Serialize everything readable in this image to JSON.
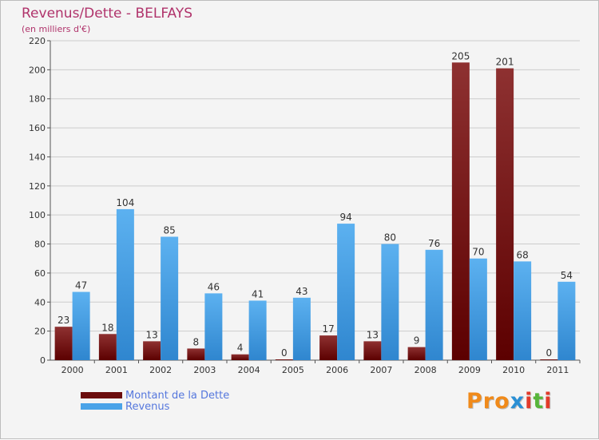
{
  "header": {
    "title": "Revenus/Dette - BELFAYS",
    "subtitle": "(en milliers d'€)"
  },
  "legend": {
    "items": [
      {
        "label": "Montant de la Dette",
        "color": "#6b0c0c"
      },
      {
        "label": "Revenus",
        "color": "#4aa3e8"
      }
    ]
  },
  "logo": {
    "text": "Proxiti",
    "colors": [
      "#f08a1a",
      "#f08a1a",
      "#f08a1a",
      "#2a8fd4",
      "#e23a2a",
      "#57b53a",
      "#e23a2a"
    ]
  },
  "chart_data": {
    "type": "bar",
    "categories": [
      "2000",
      "2001",
      "2002",
      "2003",
      "2004",
      "2005",
      "2006",
      "2007",
      "2008",
      "2009",
      "2010",
      "2011"
    ],
    "series": [
      {
        "name": "Montant de la Dette",
        "values": [
          23,
          18,
          13,
          8,
          4,
          0,
          17,
          13,
          9,
          205,
          201,
          0
        ],
        "color_top": "#8e3131",
        "color_bottom": "#5c0000"
      },
      {
        "name": "Revenus",
        "values": [
          47,
          104,
          85,
          46,
          41,
          43,
          94,
          80,
          76,
          70,
          68,
          54
        ],
        "color_top": "#5cb1f0",
        "color_bottom": "#2f86cf"
      }
    ],
    "yticks": [
      "0",
      "20",
      "40",
      "60",
      "80",
      "100",
      "120",
      "140",
      "160",
      "180",
      "200",
      "220"
    ],
    "ylim": [
      0,
      220
    ],
    "grid": true
  }
}
